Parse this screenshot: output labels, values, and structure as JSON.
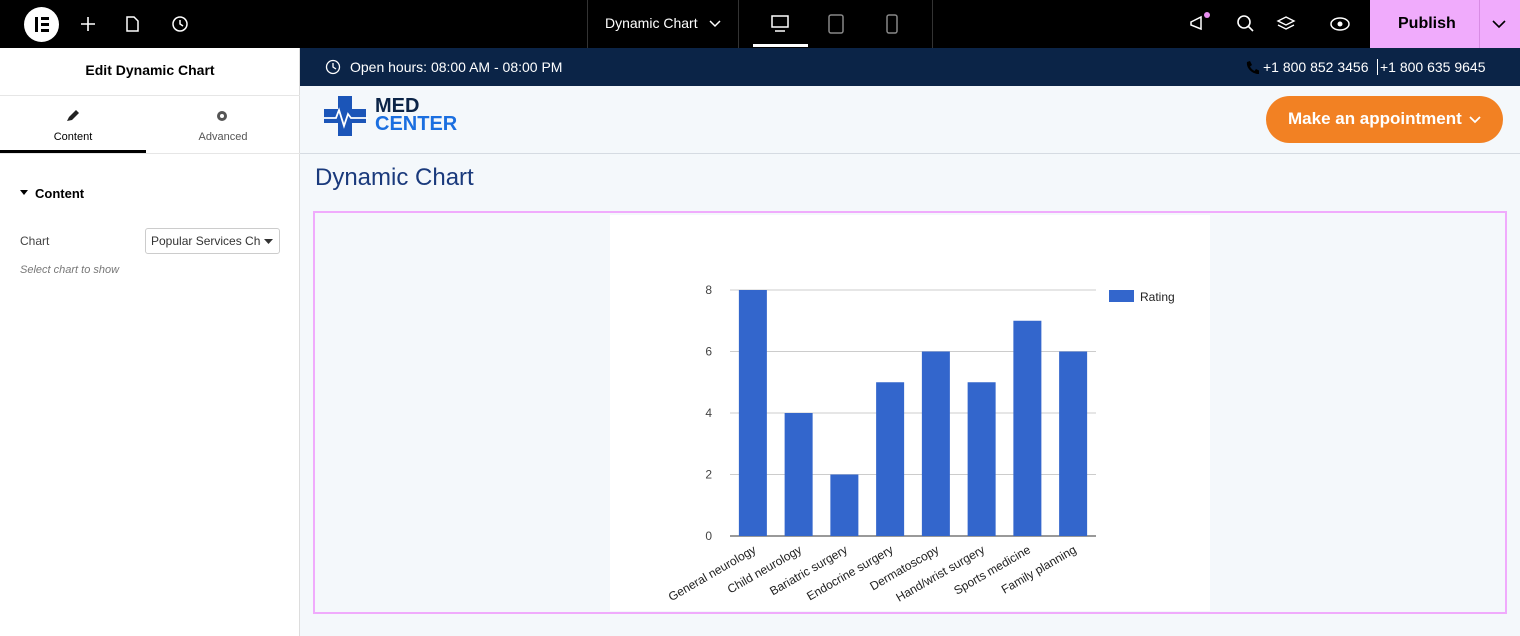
{
  "topbar": {
    "document": "Dynamic Chart",
    "publish": "Publish"
  },
  "panel": {
    "title": "Edit Dynamic Chart",
    "tabs": [
      "Content",
      "Advanced"
    ],
    "section": "Content",
    "field_label": "Chart",
    "field_value": "Popular Services Chart",
    "hint": "Select chart to show"
  },
  "site": {
    "hours": "Open hours: 08:00 AM - 08:00 PM",
    "phones": [
      "+1 800 852 3456",
      "+1 800 635 9645"
    ],
    "logo": [
      "MED",
      "CENTER"
    ],
    "cta": "Make an appointment",
    "heading": "Dynamic Chart"
  },
  "chart_data": {
    "type": "bar",
    "categories": [
      "General neurology",
      "Child neurology",
      "Bariatric surgery",
      "Endocrine surgery",
      "Dermatoscopy",
      "Hand/wrist surgery",
      "Sports medicine",
      "Family planning"
    ],
    "series": [
      {
        "name": "Rating",
        "color": "#3366cc",
        "values": [
          8,
          4,
          2,
          5,
          6,
          5,
          7,
          6
        ]
      }
    ],
    "ylim": [
      0,
      8
    ],
    "yticks": [
      0,
      2,
      4,
      6,
      8
    ],
    "grid": true,
    "legend": "right"
  }
}
